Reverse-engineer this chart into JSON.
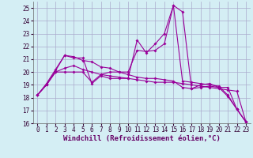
{
  "xlabel": "Windchill (Refroidissement éolien,°C)",
  "x": [
    0,
    1,
    2,
    3,
    4,
    5,
    6,
    7,
    8,
    9,
    10,
    11,
    12,
    13,
    14,
    15,
    16,
    17,
    18,
    19,
    20,
    21,
    22,
    23
  ],
  "line1": [
    18.2,
    19.1,
    20.2,
    21.3,
    21.1,
    21.1,
    19.1,
    19.7,
    19.5,
    19.5,
    19.5,
    22.5,
    21.5,
    22.2,
    23.0,
    25.2,
    24.7,
    18.7,
    19.0,
    19.1,
    18.8,
    18.1,
    17.1,
    16.1
  ],
  "line2": [
    18.2,
    19.0,
    20.0,
    20.3,
    20.5,
    20.2,
    20.0,
    19.8,
    19.7,
    19.6,
    19.5,
    19.4,
    19.3,
    19.2,
    19.2,
    19.2,
    19.1,
    19.0,
    18.9,
    18.8,
    18.7,
    18.6,
    18.5,
    16.1
  ],
  "line3": [
    18.2,
    19.0,
    20.1,
    21.3,
    21.2,
    20.9,
    20.8,
    20.4,
    20.3,
    20.0,
    19.8,
    19.6,
    19.5,
    19.5,
    19.4,
    19.3,
    18.8,
    18.7,
    18.8,
    18.9,
    18.8,
    18.8,
    17.1,
    16.1
  ],
  "line4": [
    18.2,
    19.0,
    20.0,
    20.0,
    20.0,
    20.0,
    19.2,
    19.8,
    20.0,
    20.0,
    20.0,
    21.7,
    21.6,
    21.7,
    22.2,
    25.2,
    19.3,
    19.2,
    19.1,
    19.0,
    18.9,
    18.2,
    17.1,
    16.1
  ],
  "line_color": "#990099",
  "bg_color": "#d4eef4",
  "grid_color": "#aaaacc",
  "ylim": [
    16,
    25.5
  ],
  "xlim": [
    -0.5,
    23.5
  ],
  "yticks": [
    16,
    17,
    18,
    19,
    20,
    21,
    22,
    23,
    24,
    25
  ],
  "xticks": [
    0,
    1,
    2,
    3,
    4,
    5,
    6,
    7,
    8,
    9,
    10,
    11,
    12,
    13,
    14,
    15,
    16,
    17,
    18,
    19,
    20,
    21,
    22,
    23
  ],
  "marker": "D",
  "markersize": 2,
  "linewidth": 0.8,
  "tick_fontsize": 5.5,
  "xlabel_fontsize": 6.5
}
